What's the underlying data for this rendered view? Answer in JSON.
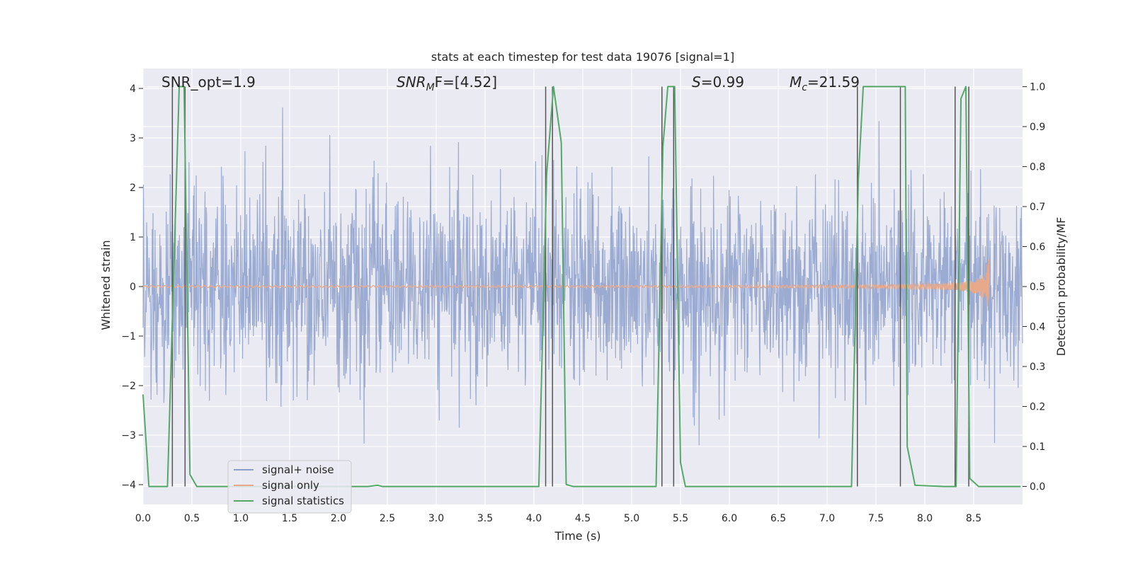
{
  "chart_data": {
    "type": "line",
    "title": "stats at each timestep for test data 19076 [signal=1]",
    "xlabel": "Time (s)",
    "ylabel_left": "Whitened strain",
    "ylabel_right": "Detection probability/MF",
    "xlim": [
      0.0,
      9.0
    ],
    "ylim_left": [
      -4.4,
      4.4
    ],
    "ylim_right": [
      -0.045,
      1.045
    ],
    "grid": true,
    "x_ticks": [
      0.0,
      0.5,
      1.0,
      1.5,
      2.0,
      2.5,
      3.0,
      3.5,
      4.0,
      4.5,
      5.0,
      5.5,
      6.0,
      6.5,
      7.0,
      7.5,
      8.0,
      8.5
    ],
    "x_tick_labels": [
      "0.0",
      "0.5",
      "1.0",
      "1.5",
      "2.0",
      "2.5",
      "3.0",
      "3.5",
      "4.0",
      "4.5",
      "5.0",
      "5.5",
      "6.0",
      "6.5",
      "7.0",
      "7.5",
      "8.0",
      "8.5"
    ],
    "y_ticks_left": [
      4,
      3,
      2,
      1,
      0,
      -1,
      -2,
      -3,
      -4
    ],
    "y_tick_labels_left": [
      "4",
      "3",
      "2",
      "1",
      "0",
      "−1",
      "−2",
      "−3",
      "−4"
    ],
    "y_ticks_right": [
      1.0,
      0.9,
      0.8,
      0.7,
      0.6,
      0.5,
      0.4,
      0.3,
      0.2,
      0.1,
      0.0
    ],
    "y_tick_labels_right": [
      "1.0",
      "0.9",
      "0.8",
      "0.7",
      "0.6",
      "0.5",
      "0.4",
      "0.3",
      "0.2",
      "0.1",
      "0.0"
    ],
    "annotations": {
      "snr_opt": "SNR_opt=1.9",
      "snr_mf_sym": "SNR",
      "snr_mf_sub": "M",
      "snr_mf_rest": "F=[4.52]",
      "s_sym": "S",
      "s_value": "=0.99",
      "mc_sym": "M",
      "mc_sub": "c",
      "mc_value": "=21.59"
    },
    "series": [
      {
        "name": "signal+ noise",
        "color": "#8da0cb",
        "description": "whitened noise, |amplitude| mostly below ~2.5, peaks up to ~4"
      },
      {
        "name": "signal only",
        "color": "#e8a98b",
        "description": "chirp near zero growing to ~±0.5 at ~8.65 s"
      },
      {
        "name": "signal statistics",
        "color": "#55a868",
        "x": [
          0.0,
          0.06,
          0.25,
          0.37,
          0.42,
          0.48,
          0.55,
          2.3,
          2.4,
          2.45,
          4.05,
          4.13,
          4.2,
          4.28,
          4.33,
          4.4,
          5.25,
          5.32,
          5.37,
          5.44,
          5.5,
          5.55,
          7.25,
          7.32,
          7.37,
          7.8,
          7.82,
          7.9,
          8.2,
          8.32,
          8.37,
          8.42,
          8.46,
          8.55,
          8.98
        ],
        "values": [
          0.23,
          0.0,
          0.0,
          1.0,
          1.0,
          0.03,
          0.0,
          0.0,
          0.003,
          0.0,
          0.0,
          0.78,
          1.0,
          0.86,
          0.005,
          0.0,
          0.0,
          0.85,
          1.0,
          1.0,
          0.06,
          0.0,
          0.0,
          0.77,
          1.0,
          1.0,
          0.1,
          0.003,
          0.0,
          0.0,
          0.97,
          1.0,
          0.02,
          0.0,
          0.0
        ]
      }
    ],
    "vertical_lines_x": [
      0.3,
      0.43,
      4.12,
      4.19,
      5.31,
      5.43,
      7.31,
      7.75,
      8.31,
      8.45
    ],
    "legend_position": "lower-left",
    "legend_entries": [
      "signal+ noise",
      "signal only",
      "signal statistics"
    ],
    "colors": {
      "background": "#eaeaf2",
      "grid": "#ffffff",
      "noise": "#8da0cb",
      "signal": "#e8a98b",
      "statistic": "#55a868",
      "vline": "#555555"
    }
  }
}
